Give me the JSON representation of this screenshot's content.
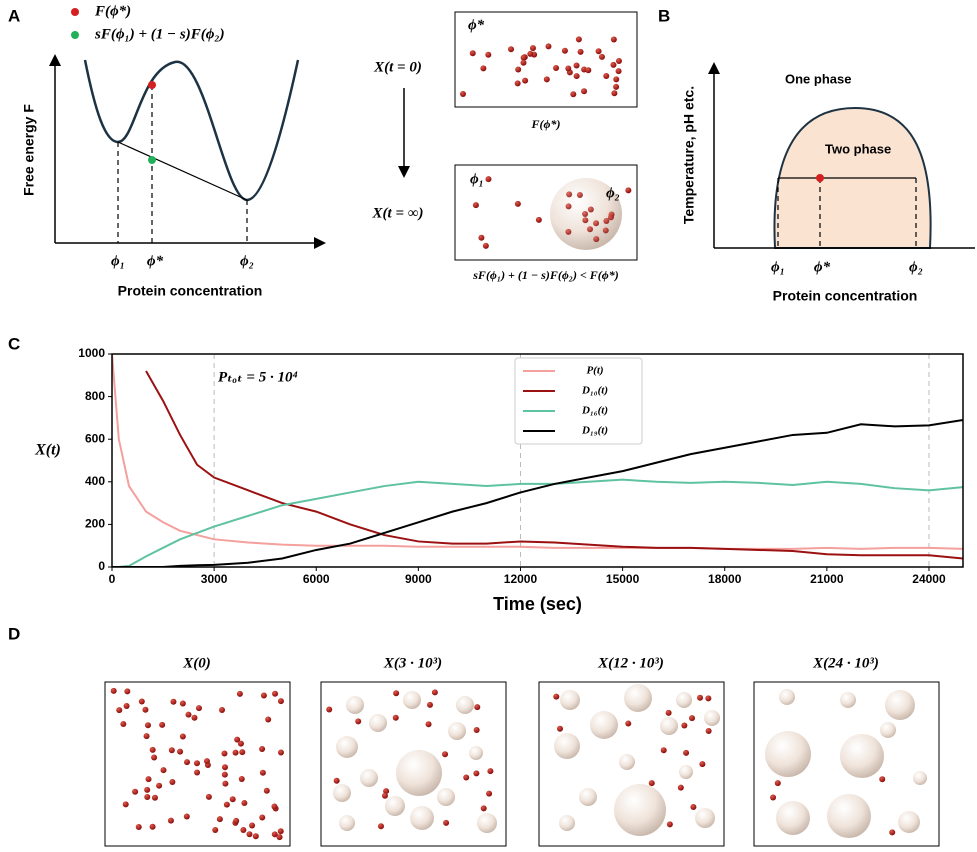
{
  "panel_a": {
    "label": "A",
    "legend": [
      "F(ϕ*)",
      "sF(ϕ₁) + (1 − s)F(ϕ₂)"
    ],
    "ylabel": "Free energy F",
    "xlabel": "Protein concentration",
    "ticks": [
      "ϕ₁",
      "ϕ*",
      "ϕ₂"
    ],
    "states": [
      "X(t = 0)",
      "X(t = ∞)"
    ],
    "box_top_label": "ϕ*",
    "box_top_caption": "F(ϕ*)",
    "box_bottom_labels": [
      "ϕ₁",
      "ϕ₂"
    ],
    "box_bottom_caption": "sF(ϕ₁) + (1 − s)F(ϕ₂) < F(ϕ*)"
  },
  "panel_b": {
    "label": "B",
    "ylabel": "Temperature, pH etc.",
    "xlabel": "Protein concentration",
    "regions": [
      "One phase",
      "Two phase"
    ],
    "ticks": [
      "ϕ₁",
      "ϕ*",
      "ϕ₂"
    ]
  },
  "chart_data": {
    "type": "line",
    "label": "C",
    "annotation": "Pₜₒₜ = 5 · 10⁴",
    "xlabel": "Time (sec)",
    "ylabel": "X(t)",
    "xlim": [
      0,
      25000
    ],
    "xticks": [
      0,
      3000,
      6000,
      9000,
      12000,
      15000,
      18000,
      21000,
      24000
    ],
    "ylim": [
      0,
      1000
    ],
    "yticks": [
      0,
      200,
      400,
      600,
      800,
      1000
    ],
    "markers": [
      3000,
      12000,
      24000
    ],
    "legend": "upper center",
    "x": [
      0,
      200,
      500,
      1000,
      1500,
      2000,
      2500,
      3000,
      4000,
      5000,
      6000,
      7000,
      8000,
      9000,
      10000,
      11000,
      12000,
      13000,
      14000,
      15000,
      16000,
      17000,
      18000,
      19000,
      20000,
      21000,
      22000,
      23000,
      24000,
      25000
    ],
    "series": [
      {
        "name": "P(t)",
        "color": "#f4a09c",
        "values": [
          1000,
          600,
          380,
          260,
          210,
          170,
          150,
          130,
          115,
          105,
          100,
          100,
          100,
          95,
          95,
          95,
          95,
          90,
          90,
          90,
          90,
          90,
          85,
          85,
          85,
          90,
          85,
          90,
          90,
          85
        ]
      },
      {
        "name": "D₁₀(t)",
        "color": "#9b1111",
        "values": [
          null,
          null,
          null,
          920,
          780,
          620,
          480,
          420,
          360,
          300,
          260,
          200,
          150,
          120,
          110,
          110,
          120,
          115,
          105,
          95,
          90,
          90,
          85,
          80,
          75,
          60,
          55,
          55,
          55,
          40
        ]
      },
      {
        "name": "D₁₆(t)",
        "color": "#5fc2a2",
        "values": [
          0,
          0,
          5,
          50,
          90,
          130,
          160,
          190,
          240,
          290,
          320,
          350,
          380,
          400,
          390,
          380,
          390,
          390,
          400,
          410,
          400,
          395,
          400,
          395,
          385,
          400,
          390,
          370,
          360,
          375
        ]
      },
      {
        "name": "D₁₉(t)",
        "color": "#000000",
        "values": [
          0,
          0,
          0,
          0,
          0,
          5,
          8,
          10,
          20,
          40,
          80,
          110,
          160,
          210,
          260,
          300,
          350,
          390,
          420,
          450,
          490,
          530,
          560,
          590,
          620,
          630,
          670,
          660,
          665,
          690
        ]
      }
    ]
  },
  "panel_d": {
    "label": "D",
    "titles": [
      "X(0)",
      "X(3 · 10³)",
      "X(12 · 10³)",
      "X(24 · 10³)"
    ]
  }
}
